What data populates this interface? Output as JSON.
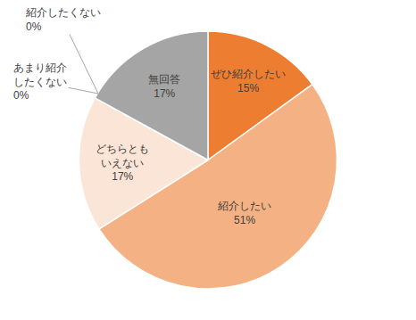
{
  "chart_data": {
    "type": "pie",
    "categories": [
      "ぜひ紹介したい",
      "紹介したい",
      "どちらともいえない",
      "あまり紹介したくない",
      "紹介したくない",
      "無回答"
    ],
    "values": [
      15,
      51,
      17,
      0,
      0,
      17
    ],
    "value_labels": [
      "15%",
      "51%",
      "17%",
      "0%",
      "0%",
      "17%"
    ],
    "colors": [
      "#ed7d31",
      "#f4b183",
      "#fbe5d6",
      "#c55a11",
      "#843c0c",
      "#a5a5a5"
    ],
    "data_labels": true
  }
}
